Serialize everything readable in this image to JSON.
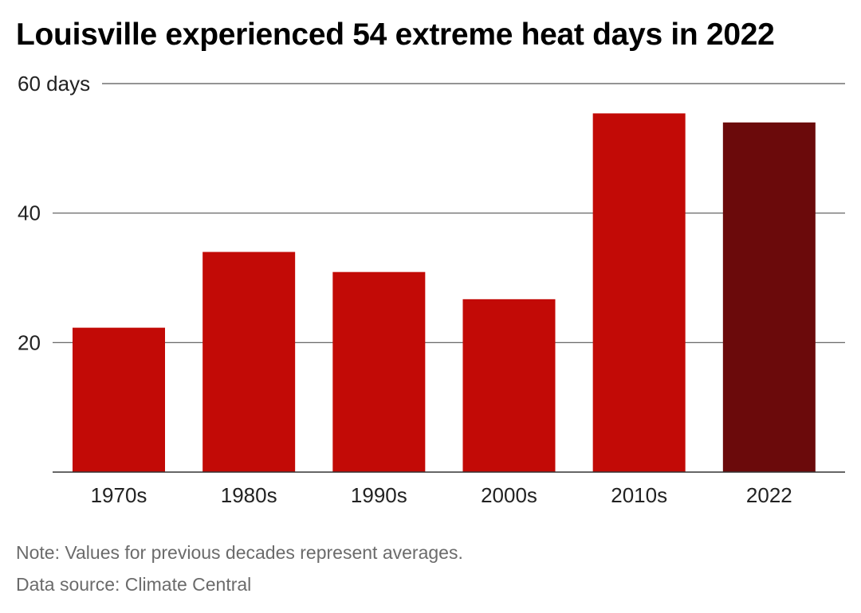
{
  "title": "Louisville experienced 54 extreme heat days in 2022",
  "note": "Note: Values for previous decades represent averages.",
  "source": "Data source: Climate Central",
  "colors": {
    "bar": "#c20a06",
    "highlight": "#6b0a0b",
    "grid": "#555555",
    "baseline": "#333333"
  },
  "chart_data": {
    "type": "bar",
    "title": "Louisville experienced 54 extreme heat days in 2022",
    "xlabel": "",
    "ylabel": "",
    "categories": [
      "1970s",
      "1980s",
      "1990s",
      "2000s",
      "2010s",
      "2022"
    ],
    "values": [
      22.3,
      34.0,
      30.9,
      26.7,
      55.4,
      54
    ],
    "highlight_category": "2022",
    "ylim": [
      0,
      60
    ],
    "yticks": [
      20,
      40,
      60
    ],
    "ytick_labels": [
      "20",
      "40",
      "60 days"
    ],
    "grid": true,
    "legend": "none"
  }
}
